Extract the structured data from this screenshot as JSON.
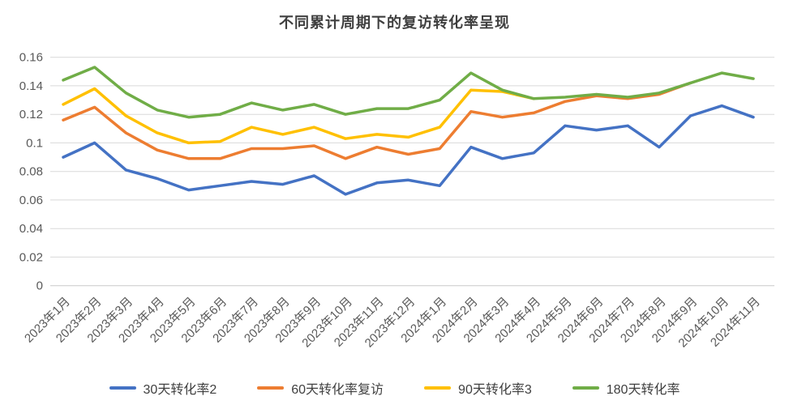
{
  "chart_data": {
    "type": "line",
    "title": "不同累计周期下的复访转化率呈现",
    "categories": [
      "2023年1月",
      "2023年2月",
      "2023年3月",
      "2023年4月",
      "2023年5月",
      "2023年6月",
      "2023年7月",
      "2023年8月",
      "2023年9月",
      "2023年10月",
      "2023年11月",
      "2023年12月",
      "2024年1月",
      "2024年2月",
      "2024年3月",
      "2024年4月",
      "2024年5月",
      "2024年6月",
      "2024年7月",
      "2024年8月",
      "2024年9月",
      "2024年10月",
      "2024年11月"
    ],
    "series": [
      {
        "key": "30d",
        "name": "30天转化率2",
        "color": "#4472C4",
        "values": [
          0.09,
          0.1,
          0.081,
          0.075,
          0.067,
          0.07,
          0.073,
          0.071,
          0.077,
          0.064,
          0.072,
          0.074,
          0.07,
          0.097,
          0.089,
          0.093,
          0.112,
          0.109,
          0.112,
          0.097,
          0.119,
          0.126,
          0.118
        ]
      },
      {
        "key": "60d",
        "name": "60天转化率复访",
        "color": "#ED7D31",
        "values": [
          0.116,
          0.125,
          0.107,
          0.095,
          0.089,
          0.089,
          0.096,
          0.096,
          0.098,
          0.089,
          0.097,
          0.092,
          0.096,
          0.122,
          0.118,
          0.121,
          0.129,
          0.133,
          0.131,
          0.134,
          0.142,
          null,
          null
        ]
      },
      {
        "key": "90d",
        "name": "90天转化率3",
        "color": "#FFC000",
        "values": [
          0.127,
          0.138,
          0.119,
          0.107,
          0.1,
          0.101,
          0.111,
          0.106,
          0.111,
          0.103,
          0.106,
          0.104,
          0.111,
          0.137,
          0.136,
          0.131,
          null,
          null,
          null,
          null,
          null,
          null,
          null
        ]
      },
      {
        "key": "180d",
        "name": "180天转化率",
        "color": "#70AD47",
        "values": [
          0.144,
          0.153,
          0.135,
          0.123,
          0.118,
          0.12,
          0.128,
          0.123,
          0.127,
          0.12,
          0.124,
          0.124,
          0.13,
          0.149,
          0.137,
          0.131,
          0.132,
          0.134,
          0.132,
          0.135,
          0.142,
          0.149,
          0.145
        ]
      }
    ],
    "y_axis": {
      "min": 0,
      "max": 0.16,
      "step": 0.02,
      "tick_labels": [
        "0",
        "0.02",
        "0.04",
        "0.06",
        "0.08",
        "0.1",
        "0.12",
        "0.14",
        "0.16"
      ]
    },
    "grid": true,
    "legend_position": "bottom",
    "style": {
      "title_color": "#3f3f3f",
      "axis_label_color": "#595959",
      "gridline_color": "#D9D9D9",
      "baseline_color": "#C9C9C9",
      "background": "#FFFFFF",
      "line_width": 3.5
    }
  }
}
